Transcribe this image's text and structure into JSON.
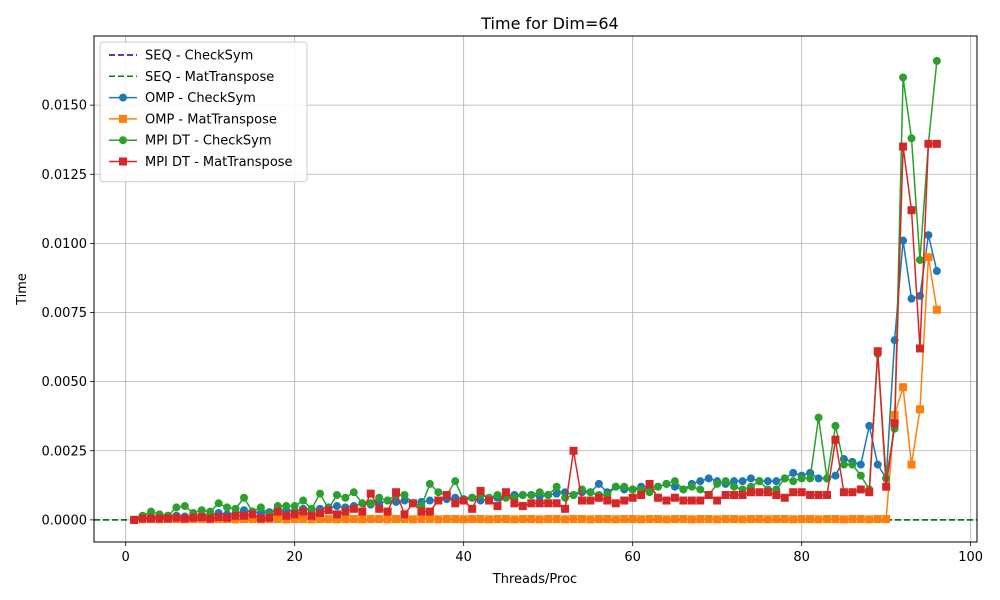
{
  "chart_data": {
    "type": "line",
    "title": "Time for Dim=64",
    "xlabel": "Threads/Proc",
    "ylabel": "Time",
    "xlim": [
      -3.75,
      100.75
    ],
    "ylim": [
      -0.0008,
      0.0175
    ],
    "xticks": [
      0,
      20,
      40,
      60,
      80,
      100
    ],
    "xtick_labels": [
      "0",
      "20",
      "40",
      "60",
      "80",
      "100"
    ],
    "yticks": [
      0,
      0.0025,
      0.005,
      0.0075,
      0.01,
      0.0125,
      0.015
    ],
    "ytick_labels": [
      "0.0000",
      "0.0025",
      "0.0050",
      "0.0075",
      "0.0100",
      "0.0125",
      "0.0150"
    ],
    "grid": true,
    "legend_position": "top-left",
    "series": [
      {
        "name": "SEQ - CheckSym",
        "color": "#0000cc",
        "style": "dashed-hline",
        "marker": "none",
        "value": 0.0
      },
      {
        "name": "SEQ - MatTranspose",
        "color": "#008000",
        "style": "dashed-hline",
        "marker": "none",
        "value": 0.0
      },
      {
        "name": "OMP - CheckSym",
        "color": "#1f77b4",
        "style": "solid",
        "marker": "circle",
        "x": [
          1,
          2,
          3,
          4,
          5,
          6,
          7,
          8,
          9,
          10,
          11,
          12,
          13,
          14,
          15,
          16,
          17,
          18,
          19,
          20,
          21,
          22,
          23,
          24,
          25,
          26,
          27,
          28,
          29,
          30,
          31,
          32,
          33,
          34,
          35,
          36,
          37,
          38,
          39,
          40,
          41,
          42,
          43,
          44,
          45,
          46,
          47,
          48,
          49,
          50,
          51,
          52,
          53,
          54,
          55,
          56,
          57,
          58,
          59,
          60,
          61,
          62,
          63,
          64,
          65,
          66,
          67,
          68,
          69,
          70,
          71,
          72,
          73,
          74,
          75,
          76,
          77,
          78,
          79,
          80,
          81,
          82,
          83,
          84,
          85,
          86,
          87,
          88,
          89,
          90,
          91,
          92,
          93,
          94,
          95,
          96
        ],
        "y": [
          0.0,
          5e-05,
          0.0001,
          8e-05,
          0.00012,
          0.00015,
          0.00012,
          0.0001,
          0.00015,
          0.00018,
          0.00025,
          0.0002,
          0.00022,
          0.00035,
          0.0003,
          0.00025,
          0.00028,
          0.0003,
          0.00035,
          0.00032,
          0.0004,
          0.00035,
          0.0004,
          0.00045,
          0.0005,
          0.00045,
          0.0005,
          0.0006,
          0.00055,
          0.0006,
          0.0007,
          0.00065,
          0.0007,
          0.0006,
          0.00065,
          0.0007,
          0.0007,
          0.00075,
          0.0008,
          0.00075,
          0.0008,
          0.0007,
          0.00075,
          0.0008,
          0.00085,
          0.0009,
          0.0009,
          0.0009,
          0.00085,
          0.0009,
          0.00095,
          0.001,
          0.0009,
          0.001,
          0.001,
          0.0013,
          0.001,
          0.0012,
          0.0011,
          0.0011,
          0.0012,
          0.0012,
          0.0012,
          0.0013,
          0.0012,
          0.0011,
          0.0013,
          0.0014,
          0.0015,
          0.0014,
          0.0013,
          0.0014,
          0.0014,
          0.0015,
          0.0014,
          0.0014,
          0.0014,
          0.0015,
          0.0017,
          0.0016,
          0.0017,
          0.0015,
          0.0015,
          0.0016,
          0.0022,
          0.0021,
          0.002,
          0.0034,
          0.002,
          0.0015,
          0.0065,
          0.0101,
          0.008,
          0.0081,
          0.0103,
          0.009
        ]
      },
      {
        "name": "OMP - MatTranspose",
        "color": "#ff7f0e",
        "style": "solid",
        "marker": "square",
        "x": [
          1,
          2,
          3,
          4,
          5,
          6,
          7,
          8,
          9,
          10,
          11,
          12,
          13,
          14,
          15,
          16,
          17,
          18,
          19,
          20,
          21,
          22,
          23,
          24,
          25,
          26,
          27,
          28,
          29,
          30,
          31,
          32,
          33,
          34,
          35,
          36,
          37,
          38,
          39,
          40,
          41,
          42,
          43,
          44,
          45,
          46,
          47,
          48,
          49,
          50,
          51,
          52,
          53,
          54,
          55,
          56,
          57,
          58,
          59,
          60,
          61,
          62,
          63,
          64,
          65,
          66,
          67,
          68,
          69,
          70,
          71,
          72,
          73,
          74,
          75,
          76,
          77,
          78,
          79,
          80,
          81,
          82,
          83,
          84,
          85,
          86,
          87,
          88,
          89,
          90,
          91,
          92,
          93,
          94,
          95,
          96
        ],
        "y": [
          0.0,
          2e-05,
          3e-05,
          2e-05,
          3e-05,
          3e-05,
          2e-05,
          3e-05,
          3e-05,
          2e-05,
          3e-05,
          3e-05,
          2e-05,
          3e-05,
          3e-05,
          2e-05,
          3e-05,
          3e-05,
          2e-05,
          3e-05,
          3e-05,
          2e-05,
          3e-05,
          3e-05,
          2e-05,
          3e-05,
          3e-05,
          2e-05,
          3e-05,
          3e-05,
          2e-05,
          3e-05,
          3e-05,
          2e-05,
          3e-05,
          3e-05,
          2e-05,
          3e-05,
          3e-05,
          2e-05,
          3e-05,
          3e-05,
          2e-05,
          3e-05,
          3e-05,
          2e-05,
          3e-05,
          3e-05,
          2e-05,
          3e-05,
          3e-05,
          2e-05,
          3e-05,
          3e-05,
          2e-05,
          3e-05,
          3e-05,
          2e-05,
          3e-05,
          3e-05,
          2e-05,
          3e-05,
          3e-05,
          2e-05,
          3e-05,
          3e-05,
          2e-05,
          3e-05,
          3e-05,
          2e-05,
          3e-05,
          3e-05,
          2e-05,
          3e-05,
          3e-05,
          2e-05,
          3e-05,
          3e-05,
          2e-05,
          3e-05,
          3e-05,
          2e-05,
          3e-05,
          3e-05,
          2e-05,
          3e-05,
          3e-05,
          2e-05,
          3e-05,
          3e-05,
          0.0038,
          0.0048,
          0.002,
          0.004,
          0.0095,
          0.0076
        ]
      },
      {
        "name": "MPI DT - CheckSym",
        "color": "#2ca02c",
        "style": "solid",
        "marker": "circle",
        "x": [
          1,
          2,
          3,
          4,
          5,
          6,
          7,
          8,
          9,
          10,
          11,
          12,
          13,
          14,
          15,
          16,
          17,
          18,
          19,
          20,
          21,
          22,
          23,
          24,
          25,
          26,
          27,
          28,
          29,
          30,
          31,
          32,
          33,
          34,
          35,
          36,
          37,
          38,
          39,
          40,
          41,
          42,
          43,
          44,
          45,
          46,
          47,
          48,
          49,
          50,
          51,
          52,
          53,
          54,
          55,
          56,
          57,
          58,
          59,
          60,
          61,
          62,
          63,
          64,
          65,
          66,
          67,
          68,
          69,
          70,
          71,
          72,
          73,
          74,
          75,
          76,
          77,
          78,
          79,
          80,
          81,
          82,
          83,
          84,
          85,
          86,
          87,
          88,
          89,
          90,
          91,
          92,
          93,
          94,
          95,
          96
        ],
        "y": [
          0.0,
          0.00015,
          0.0003,
          0.0002,
          0.00015,
          0.00045,
          0.0005,
          0.00025,
          0.00035,
          0.0003,
          0.0006,
          0.00045,
          0.0004,
          0.0008,
          0.0003,
          0.00045,
          0.0002,
          0.0005,
          0.0005,
          0.0005,
          0.0007,
          0.0004,
          0.00095,
          0.0004,
          0.0009,
          0.0008,
          0.001,
          0.0006,
          0.0006,
          0.0008,
          0.0007,
          0.0009,
          0.0009,
          0.0006,
          0.0005,
          0.0013,
          0.001,
          0.0009,
          0.0014,
          0.0007,
          0.0008,
          0.0009,
          0.0008,
          0.0009,
          0.0008,
          0.0008,
          0.0009,
          0.0009,
          0.001,
          0.0009,
          0.0012,
          0.0008,
          0.0009,
          0.0011,
          0.001,
          0.0009,
          0.0009,
          0.0012,
          0.0012,
          0.0011,
          0.0011,
          0.001,
          0.0012,
          0.0013,
          0.0014,
          0.0011,
          0.0012,
          0.0011,
          0.0009,
          0.0013,
          0.0014,
          0.0012,
          0.0011,
          0.0012,
          0.0014,
          0.0011,
          0.0011,
          0.0015,
          0.0014,
          0.0015,
          0.0015,
          0.0037,
          0.0015,
          0.0034,
          0.002,
          0.002,
          0.0016,
          0.0011,
          0.006,
          0.0015,
          0.0033,
          0.016,
          0.0138,
          0.0094,
          0.0136,
          0.0166
        ]
      },
      {
        "name": "MPI DT - MatTranspose",
        "color": "#d62728",
        "style": "solid",
        "marker": "square",
        "x": [
          1,
          2,
          3,
          4,
          5,
          6,
          7,
          8,
          9,
          10,
          11,
          12,
          13,
          14,
          15,
          16,
          17,
          18,
          19,
          20,
          21,
          22,
          23,
          24,
          25,
          26,
          27,
          28,
          29,
          30,
          31,
          32,
          33,
          34,
          35,
          36,
          37,
          38,
          39,
          40,
          41,
          42,
          43,
          44,
          45,
          46,
          47,
          48,
          49,
          50,
          51,
          52,
          53,
          54,
          55,
          56,
          57,
          58,
          59,
          60,
          61,
          62,
          63,
          64,
          65,
          66,
          67,
          68,
          69,
          70,
          71,
          72,
          73,
          74,
          75,
          76,
          77,
          78,
          79,
          80,
          81,
          82,
          83,
          84,
          85,
          86,
          87,
          88,
          89,
          90,
          91,
          92,
          93,
          94,
          95,
          96
        ],
        "y": [
          0.0,
          5e-05,
          5e-05,
          5e-05,
          5e-05,
          8e-05,
          5e-05,
          8e-05,
          0.0001,
          5e-05,
          0.0001,
          8e-05,
          0.00015,
          0.00015,
          0.0002,
          5e-05,
          8e-05,
          0.0003,
          0.00015,
          0.0002,
          0.0003,
          0.00015,
          0.00025,
          0.00035,
          0.0002,
          0.0003,
          0.0004,
          0.0003,
          0.00095,
          0.0004,
          0.0003,
          0.001,
          0.0002,
          0.0006,
          0.0003,
          0.0003,
          0.0007,
          0.0009,
          0.0006,
          0.0007,
          0.0004,
          0.00105,
          0.0007,
          0.0005,
          0.001,
          0.0006,
          0.0005,
          0.0006,
          0.0006,
          0.0006,
          0.0006,
          0.0004,
          0.0025,
          0.0007,
          0.0007,
          0.0008,
          0.0007,
          0.0006,
          0.0007,
          0.0008,
          0.0009,
          0.0013,
          0.0008,
          0.0007,
          0.0008,
          0.0007,
          0.0007,
          0.0007,
          0.0009,
          0.0007,
          0.0009,
          0.0009,
          0.0009,
          0.001,
          0.001,
          0.001,
          0.0009,
          0.0008,
          0.001,
          0.001,
          0.0009,
          0.0009,
          0.0009,
          0.0029,
          0.001,
          0.001,
          0.0011,
          0.001,
          0.0061,
          0.0012,
          0.0035,
          0.0135,
          0.0112,
          0.0062,
          0.0136,
          0.0136
        ]
      }
    ]
  }
}
